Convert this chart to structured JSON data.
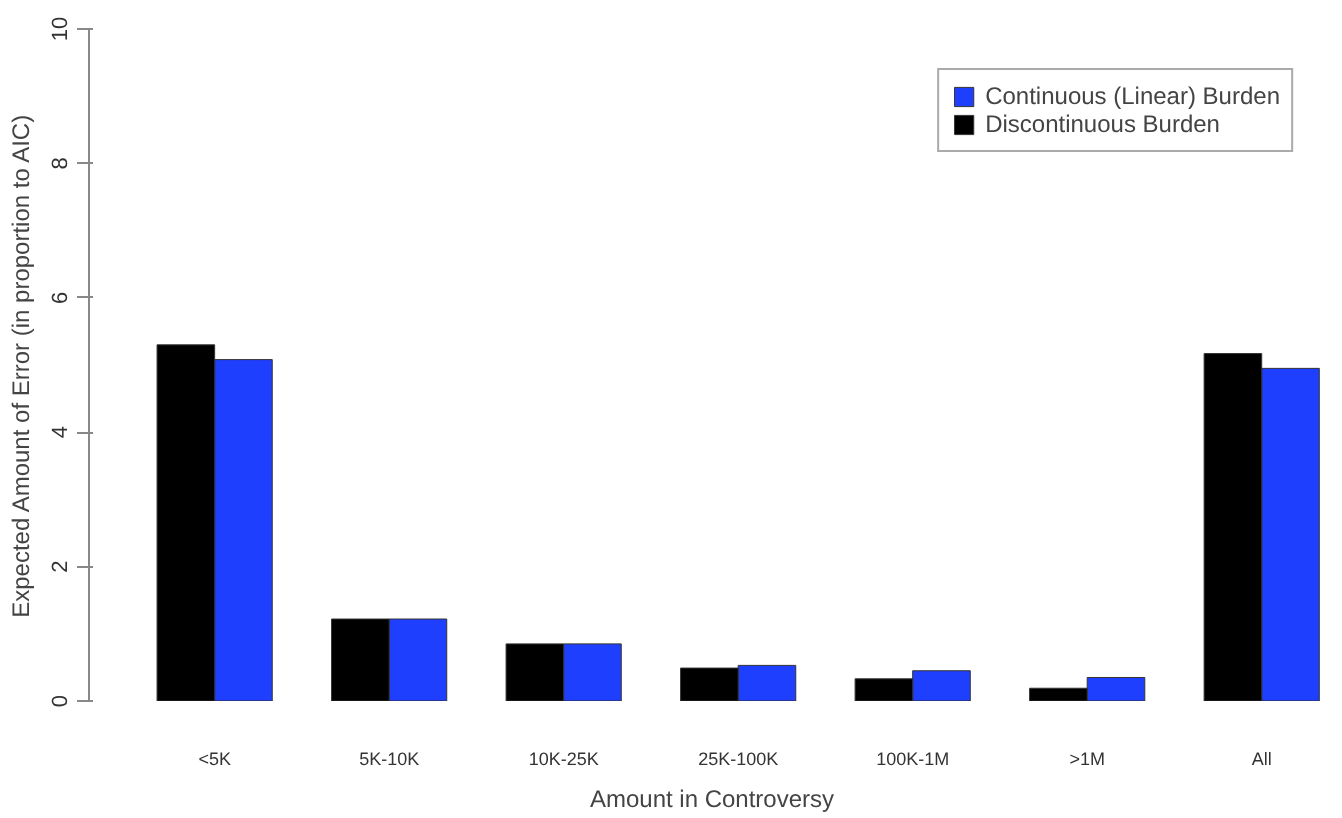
{
  "chart_data": {
    "type": "bar",
    "xlabel": "Amount in Controversy",
    "ylabel": "Expected Amount of Error (in proportion to AIC)",
    "categories": [
      "<5K",
      "5K-10K",
      "10K-25K",
      "25K-100K",
      "100K-1M",
      ">1M",
      "All"
    ],
    "series": [
      {
        "name": "Continuous (Linear) Burden",
        "color": "#1f3fff",
        "values": [
          5.08,
          1.22,
          0.85,
          0.53,
          0.45,
          0.35,
          4.95
        ]
      },
      {
        "name": "Discontinuous Burden",
        "color": "#000000",
        "values": [
          5.3,
          1.22,
          0.85,
          0.49,
          0.33,
          0.19,
          5.17
        ]
      }
    ],
    "ylim": [
      0,
      10
    ],
    "yticks": [
      0,
      2,
      4,
      6,
      8,
      10
    ],
    "grid": false,
    "legend": "top right"
  }
}
